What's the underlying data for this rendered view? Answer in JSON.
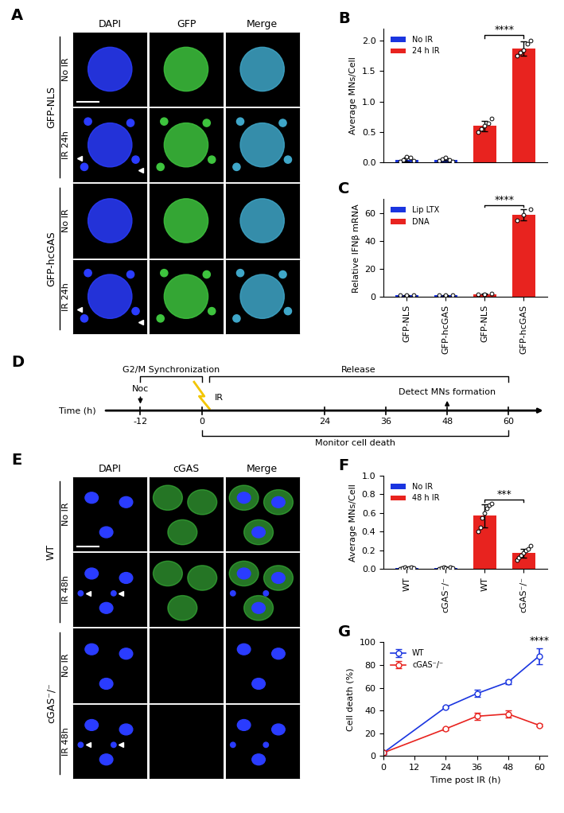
{
  "panel_A": {
    "label": "A",
    "columns": [
      "DAPI",
      "GFP",
      "Merge"
    ],
    "groups": [
      {
        "label": "GFP-NLS",
        "rows": [
          "No IR",
          "IR 24h"
        ]
      },
      {
        "label": "GFP-hcGAS",
        "rows": [
          "No IR",
          "IR 24h"
        ]
      }
    ]
  },
  "chart_data": [
    {
      "panel": "B",
      "type": "bar",
      "ylabel": "Average MNs/Cell",
      "categories": [
        null,
        null,
        null,
        null
      ],
      "tick_labels": "y",
      "legend": "upper left",
      "ylim": [
        0,
        2.2
      ],
      "yticks": [
        {
          "value": 0,
          "label": "0.0"
        },
        {
          "value": 0.5,
          "label": "0.5"
        },
        {
          "value": 1.0,
          "label": "1.0"
        },
        {
          "value": 1.5,
          "label": "1.5"
        },
        {
          "value": 2.0,
          "label": "2.0"
        }
      ],
      "series": [
        {
          "name": "No IR",
          "color": "#1a35e0",
          "values": [
            0.05,
            0.05,
            null,
            null
          ],
          "errors": [
            0.03,
            0.02,
            null,
            null
          ],
          "points": [
            [
              0.02,
              0.05,
              0.1,
              0.08,
              0.03
            ],
            [
              0.03,
              0.06,
              0.08,
              0.05,
              0.02
            ],
            null,
            null
          ]
        },
        {
          "name": "24 h IR",
          "color": "#e8231f",
          "values": [
            null,
            null,
            0.6,
            1.87
          ],
          "errors": [
            null,
            null,
            0.08,
            0.12
          ],
          "points": [
            null,
            null,
            [
              0.5,
              0.55,
              0.6,
              0.65,
              0.72
            ],
            [
              1.75,
              1.8,
              1.85,
              1.95,
              2.0
            ]
          ]
        }
      ],
      "annotations": [
        {
          "text": "****",
          "between": [
            2,
            3
          ]
        }
      ]
    },
    {
      "panel": "C",
      "type": "bar",
      "ylabel": "Relative IFNβ mRNA",
      "categories": [
        "GFP-NLS",
        "GFP-hcGAS",
        "GFP-NLS",
        "GFP-hcGAS"
      ],
      "legend": "upper left",
      "ylim": [
        0,
        70
      ],
      "yticks": [
        0,
        20,
        40,
        60
      ],
      "series": [
        {
          "name": "Lip LTX",
          "color": "#1a35e0",
          "values": [
            1,
            1,
            null,
            null
          ],
          "errors": [
            0.2,
            0.2,
            null,
            null
          ],
          "points": [
            [
              0.9,
              1.0,
              1.1
            ],
            [
              0.9,
              1.0,
              1.1
            ],
            null,
            null
          ]
        },
        {
          "name": "DNA",
          "color": "#e8231f",
          "values": [
            null,
            null,
            2,
            59
          ],
          "errors": [
            null,
            null,
            0.5,
            4
          ],
          "points": [
            null,
            null,
            [
              1.5,
              2,
              2.5
            ],
            [
              55,
              59,
              63
            ]
          ]
        }
      ],
      "annotations": [
        {
          "text": "****",
          "between": [
            2,
            3
          ]
        }
      ]
    },
    {
      "panel": "F",
      "type": "bar",
      "ylabel": "Average MNs/Cell",
      "categories": [
        "WT",
        "cGAS⁻/⁻",
        "WT",
        "cGAS⁻/⁻"
      ],
      "legend": "upper left",
      "ylim": [
        0,
        1.0
      ],
      "yticks": [
        {
          "value": 0,
          "label": "0.0"
        },
        {
          "value": 0.2,
          "label": "0.2"
        },
        {
          "value": 0.4,
          "label": "0.4"
        },
        {
          "value": 0.6,
          "label": "0.6"
        },
        {
          "value": 0.8,
          "label": "0.8"
        },
        {
          "value": 1.0,
          "label": "1.0"
        }
      ],
      "series": [
        {
          "name": "No IR",
          "color": "#1a35e0",
          "values": [
            0.01,
            0.01,
            null,
            null
          ],
          "errors": [
            0.01,
            0.01,
            null,
            null
          ],
          "points": [
            [
              0,
              0.01,
              0.02,
              0,
              0.01,
              0.02,
              0.01
            ],
            [
              0,
              0.01,
              0.02,
              0.01,
              0,
              0.02,
              0.01
            ],
            null,
            null
          ]
        },
        {
          "name": "48 h IR",
          "color": "#e8231f",
          "values": [
            null,
            null,
            0.57,
            0.17
          ],
          "errors": [
            null,
            null,
            0.12,
            0.05
          ],
          "points": [
            null,
            null,
            [
              0.4,
              0.45,
              0.55,
              0.6,
              0.65,
              0.68,
              0.7
            ],
            [
              0.1,
              0.12,
              0.15,
              0.17,
              0.2,
              0.22,
              0.25
            ]
          ]
        }
      ],
      "annotations": [
        {
          "text": "***",
          "between": [
            2,
            3
          ]
        }
      ]
    },
    {
      "panel": "G",
      "type": "line",
      "xlabel": "Time post IR (h)",
      "ylabel": "Cell death (%)",
      "x": [
        0,
        24,
        36,
        48,
        60
      ],
      "xlim": [
        0,
        63
      ],
      "xticks": [
        0,
        12,
        24,
        36,
        48,
        60
      ],
      "ylim": [
        0,
        100
      ],
      "yticks": [
        0,
        20,
        40,
        60,
        80,
        100
      ],
      "legend": "upper left",
      "series": [
        {
          "name": "WT",
          "color": "#1a35e0",
          "marker": "o",
          "line_style": "solid",
          "values": [
            3,
            43,
            55,
            65,
            88
          ],
          "errors": [
            1,
            1,
            3,
            2,
            7
          ]
        },
        {
          "name": "cGAS⁻/⁻",
          "color": "#e8231f",
          "marker": "o",
          "line_style": "solid",
          "values": [
            3,
            24,
            35,
            37,
            27
          ],
          "errors": [
            1,
            1,
            3,
            3,
            1
          ]
        }
      ],
      "annotations": [
        {
          "text": "****",
          "x": 60
        }
      ]
    }
  ],
  "panel_D": {
    "label": "D",
    "axis_label": "Time (h)",
    "ticks": [
      -12,
      0,
      24,
      36,
      48,
      60
    ],
    "events": [
      {
        "label": "Noc",
        "time": -12,
        "marker": "arrow_down"
      },
      {
        "label": "IR",
        "time": 0,
        "marker": "flash"
      },
      {
        "label": "Detect MNs formation",
        "time": 48,
        "marker": "arrow_up"
      }
    ],
    "spans_above": [
      {
        "label": "G2/M Synchronization",
        "from": -12,
        "to": 0
      },
      {
        "label": "Release",
        "from": 0,
        "to": 60
      }
    ],
    "spans_below": [
      {
        "label": "Monitor cell death",
        "from": 0,
        "to": 60
      }
    ]
  },
  "panel_E": {
    "label": "E",
    "columns": [
      "DAPI",
      "cGAS",
      "Merge"
    ],
    "groups": [
      {
        "label": "WT",
        "rows": [
          "No IR",
          "IR 48h"
        ]
      },
      {
        "label": "cGAS⁻/⁻",
        "rows": [
          "No IR",
          "IR 48h"
        ]
      }
    ]
  }
}
